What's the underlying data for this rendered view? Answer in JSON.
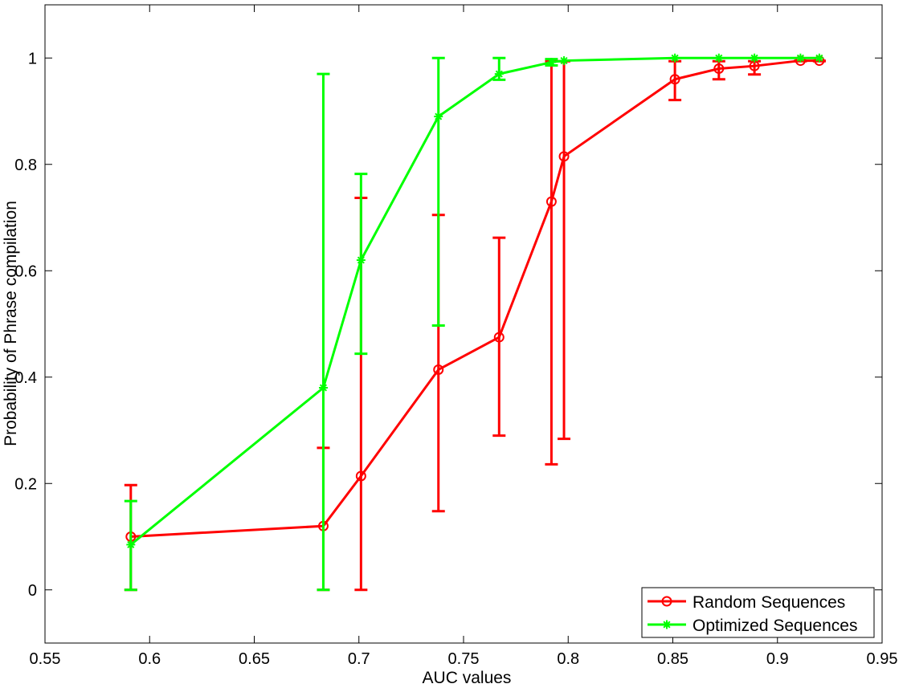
{
  "chart_data": {
    "type": "line",
    "title": "",
    "xlabel": "AUC values",
    "ylabel": "Probability of Phrase compilation",
    "xlim": [
      0.55,
      0.95
    ],
    "ylim": [
      -0.1,
      1.1
    ],
    "xticks": [
      "0.55",
      "0.6",
      "0.65",
      "0.7",
      "0.75",
      "0.8",
      "0.85",
      "0.9",
      "0.95"
    ],
    "yticks": [
      "0",
      "0.2",
      "0.4",
      "0.6",
      "0.8",
      "1"
    ],
    "grid": false,
    "legend_position": "bottom-right",
    "series": [
      {
        "name": "Random Sequences",
        "color": "#ff0000",
        "marker": "circle",
        "x": [
          0.591,
          0.683,
          0.701,
          0.738,
          0.767,
          0.792,
          0.798,
          0.851,
          0.872,
          0.889,
          0.911,
          0.92
        ],
        "y": [
          0.1,
          0.12,
          0.214,
          0.414,
          0.475,
          0.73,
          0.815,
          0.96,
          0.98,
          0.985,
          0.995,
          0.995
        ],
        "err_low": [
          0.0,
          0.0,
          0.0,
          0.148,
          0.29,
          0.236,
          0.284,
          0.921,
          0.96,
          0.969,
          0.995,
          0.995
        ],
        "err_high": [
          0.197,
          0.267,
          0.737,
          0.705,
          0.662,
          0.994,
          0.994,
          0.994,
          0.994,
          0.994,
          0.994,
          0.994
        ]
      },
      {
        "name": "Optimized Sequences",
        "color": "#00ff00",
        "marker": "star",
        "x": [
          0.591,
          0.683,
          0.701,
          0.738,
          0.767,
          0.792,
          0.798,
          0.851,
          0.872,
          0.889,
          0.911,
          0.92
        ],
        "y": [
          0.085,
          0.38,
          0.62,
          0.89,
          0.97,
          0.992,
          0.995,
          1.0,
          1.0,
          1.0,
          1.0,
          1.0
        ],
        "err_low": [
          0.0,
          0.0,
          0.444,
          0.497,
          0.959,
          0.986,
          0.995,
          1.0,
          1.0,
          1.0,
          1.0,
          1.0
        ],
        "err_high": [
          0.167,
          0.97,
          0.782,
          1.0,
          1.0,
          0.998,
          0.995,
          1.0,
          1.0,
          1.0,
          1.0,
          1.0
        ]
      }
    ]
  }
}
